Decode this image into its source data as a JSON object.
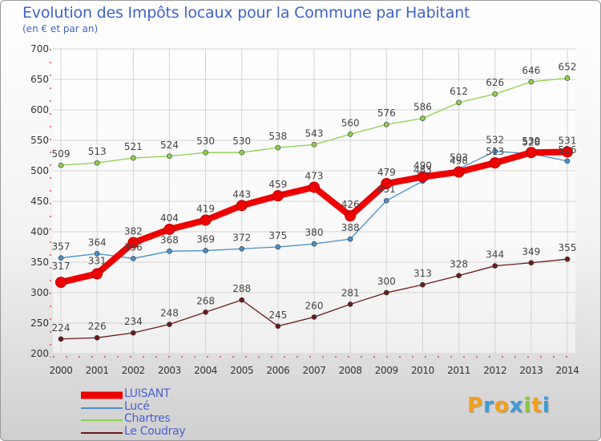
{
  "header": {
    "title": "Evolution des Impôts locaux pour la Commune par Habitant",
    "subtitle": "(en € et par an)"
  },
  "chart_data": {
    "type": "line",
    "title": "Evolution des Impôts locaux pour la Commune par Habitant",
    "subtitle": "(en € et par an)",
    "xlabel": "",
    "ylabel": "",
    "categories": [
      "2000",
      "2001",
      "2002",
      "2003",
      "2004",
      "2005",
      "2006",
      "2007",
      "2008",
      "2009",
      "2010",
      "2011",
      "2012",
      "2013",
      "2014"
    ],
    "ylim": [
      200,
      700
    ],
    "yticks": [
      200,
      250,
      300,
      350,
      400,
      450,
      500,
      550,
      600,
      650,
      700
    ],
    "grid": true,
    "legend_position": "bottom-left",
    "series": [
      {
        "name": "LUISANT",
        "color": "#ee0000",
        "values": [
          317,
          331,
          382,
          404,
          419,
          443,
          459,
          473,
          426,
          479,
          490,
          498,
          513,
          530,
          531
        ]
      },
      {
        "name": "Lucé",
        "color": "#4a90c8",
        "values": [
          357,
          364,
          356,
          368,
          369,
          372,
          375,
          380,
          388,
          451,
          483,
          503,
          532,
          528,
          516
        ]
      },
      {
        "name": "Chartres",
        "color": "#8fd14f",
        "values": [
          509,
          513,
          521,
          524,
          530,
          530,
          538,
          543,
          560,
          576,
          586,
          612,
          626,
          646,
          652
        ]
      },
      {
        "name": "Le Coudray",
        "color": "#6b1a1a",
        "values": [
          224,
          226,
          234,
          248,
          268,
          288,
          245,
          260,
          281,
          300,
          313,
          328,
          344,
          349,
          355
        ]
      }
    ]
  },
  "legend": {
    "items": [
      {
        "label": "LUISANT",
        "color": "#ee0000"
      },
      {
        "label": "Lucé",
        "color": "#4a90c8"
      },
      {
        "label": "Chartres",
        "color": "#8fd14f"
      },
      {
        "label": "Le Coudray",
        "color": "#6b1a1a"
      }
    ]
  },
  "logo": {
    "letters": [
      "P",
      "r",
      "o",
      "x",
      "i",
      "t",
      "i"
    ],
    "colors": [
      "#f2a01c",
      "#3b9ad9",
      "#f2a01c",
      "#3b9ad9",
      "#8cc63f",
      "#f2a01c",
      "#3b9ad9"
    ]
  }
}
